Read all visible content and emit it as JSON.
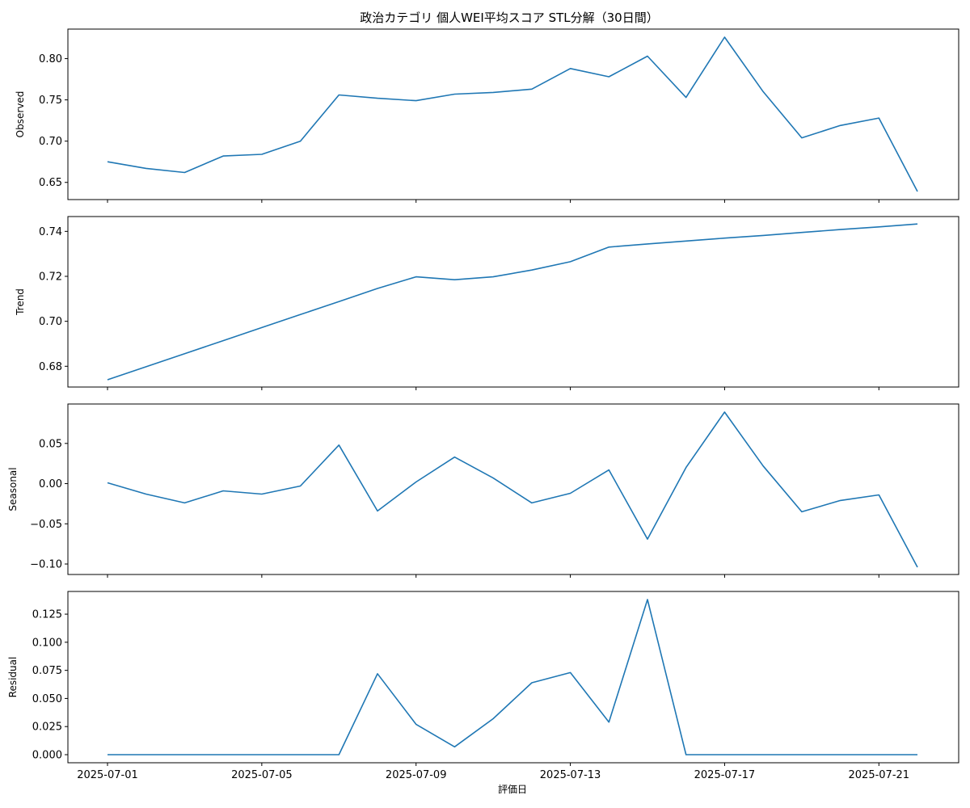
{
  "chart_data": {
    "type": "line",
    "title": "政治カテゴリ 個人WEI平均スコア STL分解（30日間）",
    "xlabel": "評価日",
    "line_color": "#1f77b4",
    "x": [
      "2025-07-01",
      "2025-07-02",
      "2025-07-03",
      "2025-07-04",
      "2025-07-05",
      "2025-07-06",
      "2025-07-07",
      "2025-07-08",
      "2025-07-09",
      "2025-07-10",
      "2025-07-11",
      "2025-07-12",
      "2025-07-13",
      "2025-07-14",
      "2025-07-15",
      "2025-07-16",
      "2025-07-17",
      "2025-07-18",
      "2025-07-19",
      "2025-07-20",
      "2025-07-21",
      "2025-07-22"
    ],
    "xticks": [
      "2025-07-01",
      "2025-07-05",
      "2025-07-09",
      "2025-07-13",
      "2025-07-17",
      "2025-07-21"
    ],
    "panels": [
      {
        "ylabel": "Observed",
        "ylim": [
          0.638,
          0.826
        ],
        "yticks": [
          "0.65",
          "0.70",
          "0.75",
          "0.80"
        ],
        "values": [
          0.675,
          0.667,
          0.662,
          0.682,
          0.684,
          0.7,
          0.756,
          0.752,
          0.749,
          0.757,
          0.759,
          0.763,
          0.788,
          0.778,
          0.803,
          0.753,
          0.826,
          0.76,
          0.704,
          0.719,
          0.728,
          0.639
        ]
      },
      {
        "ylabel": "Trend",
        "ylim": [
          0.674,
          0.743
        ],
        "yticks": [
          "0.68",
          "0.70",
          "0.72",
          "0.74"
        ],
        "values": [
          0.674,
          0.6798,
          0.6856,
          0.6914,
          0.6972,
          0.703,
          0.7088,
          0.7146,
          0.7198,
          0.7185,
          0.7198,
          0.7228,
          0.7265,
          0.733,
          0.7344,
          0.7357,
          0.737,
          0.7382,
          0.7395,
          0.7408,
          0.742,
          0.7433
        ]
      },
      {
        "ylabel": "Seasonal",
        "ylim": [
          -0.104,
          0.089
        ],
        "yticks": [
          "−0.10",
          "−0.05",
          "0.00",
          "0.05"
        ],
        "values": [
          0.001,
          -0.013,
          -0.024,
          -0.009,
          -0.013,
          -0.003,
          0.048,
          -0.034,
          0.002,
          0.033,
          0.007,
          -0.024,
          -0.012,
          0.017,
          -0.069,
          0.02,
          0.089,
          0.022,
          -0.035,
          -0.021,
          -0.014,
          -0.104
        ]
      },
      {
        "ylabel": "Residual",
        "ylim": [
          0.0,
          0.138
        ],
        "yticks": [
          "0.000",
          "0.025",
          "0.050",
          "0.075",
          "0.100",
          "0.125"
        ],
        "values": [
          0,
          0,
          0,
          0,
          0,
          0,
          0,
          0.072,
          0.027,
          0.007,
          0.032,
          0.064,
          0.073,
          0.029,
          0.138,
          0,
          0,
          0,
          0,
          0,
          0,
          0
        ]
      }
    ]
  }
}
